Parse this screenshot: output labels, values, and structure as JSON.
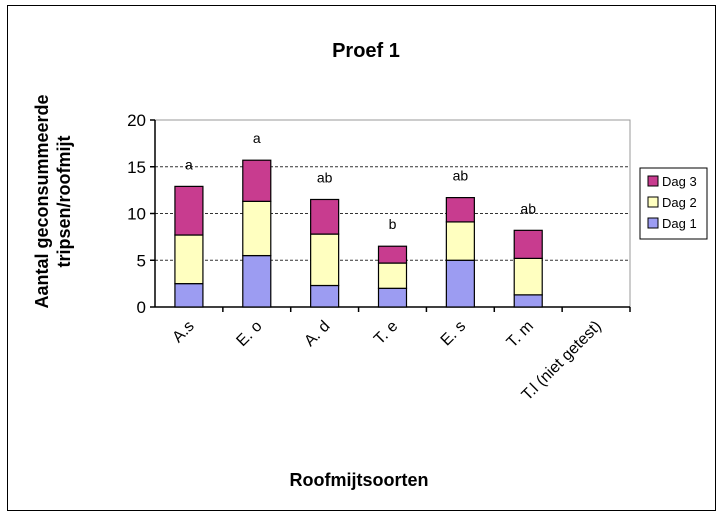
{
  "chart_data": {
    "type": "bar",
    "stacked": true,
    "title": "Proef 1",
    "xlabel": "Roofmijtsoorten",
    "ylabel_lines": [
      "Aantal geconsummeerde",
      "tripsen/roofmijt"
    ],
    "ylim": [
      0,
      20
    ],
    "yticks": [
      "0",
      "5",
      "10",
      "15",
      "20"
    ],
    "grid": "horizontal dashed at 5, 10, 15",
    "legend_position": "right",
    "categories": [
      "A.s",
      "E. o",
      "A. d",
      "T. e",
      "E. s",
      "T. m",
      "T.l (niet getest)"
    ],
    "series": [
      {
        "name": "Dag 1",
        "color": "#9c9cf2",
        "values": [
          2.5,
          5.5,
          2.3,
          2.0,
          5.0,
          1.3,
          0
        ]
      },
      {
        "name": "Dag 2",
        "color": "#ffffc0",
        "values": [
          5.2,
          5.8,
          5.5,
          2.7,
          4.1,
          3.9,
          0
        ]
      },
      {
        "name": "Dag 3",
        "color": "#c83c8f",
        "values": [
          5.2,
          4.4,
          3.7,
          1.8,
          2.6,
          3.0,
          0
        ]
      }
    ],
    "significance_labels": [
      "a",
      "a",
      "ab",
      "b",
      "ab",
      "ab",
      ""
    ]
  }
}
